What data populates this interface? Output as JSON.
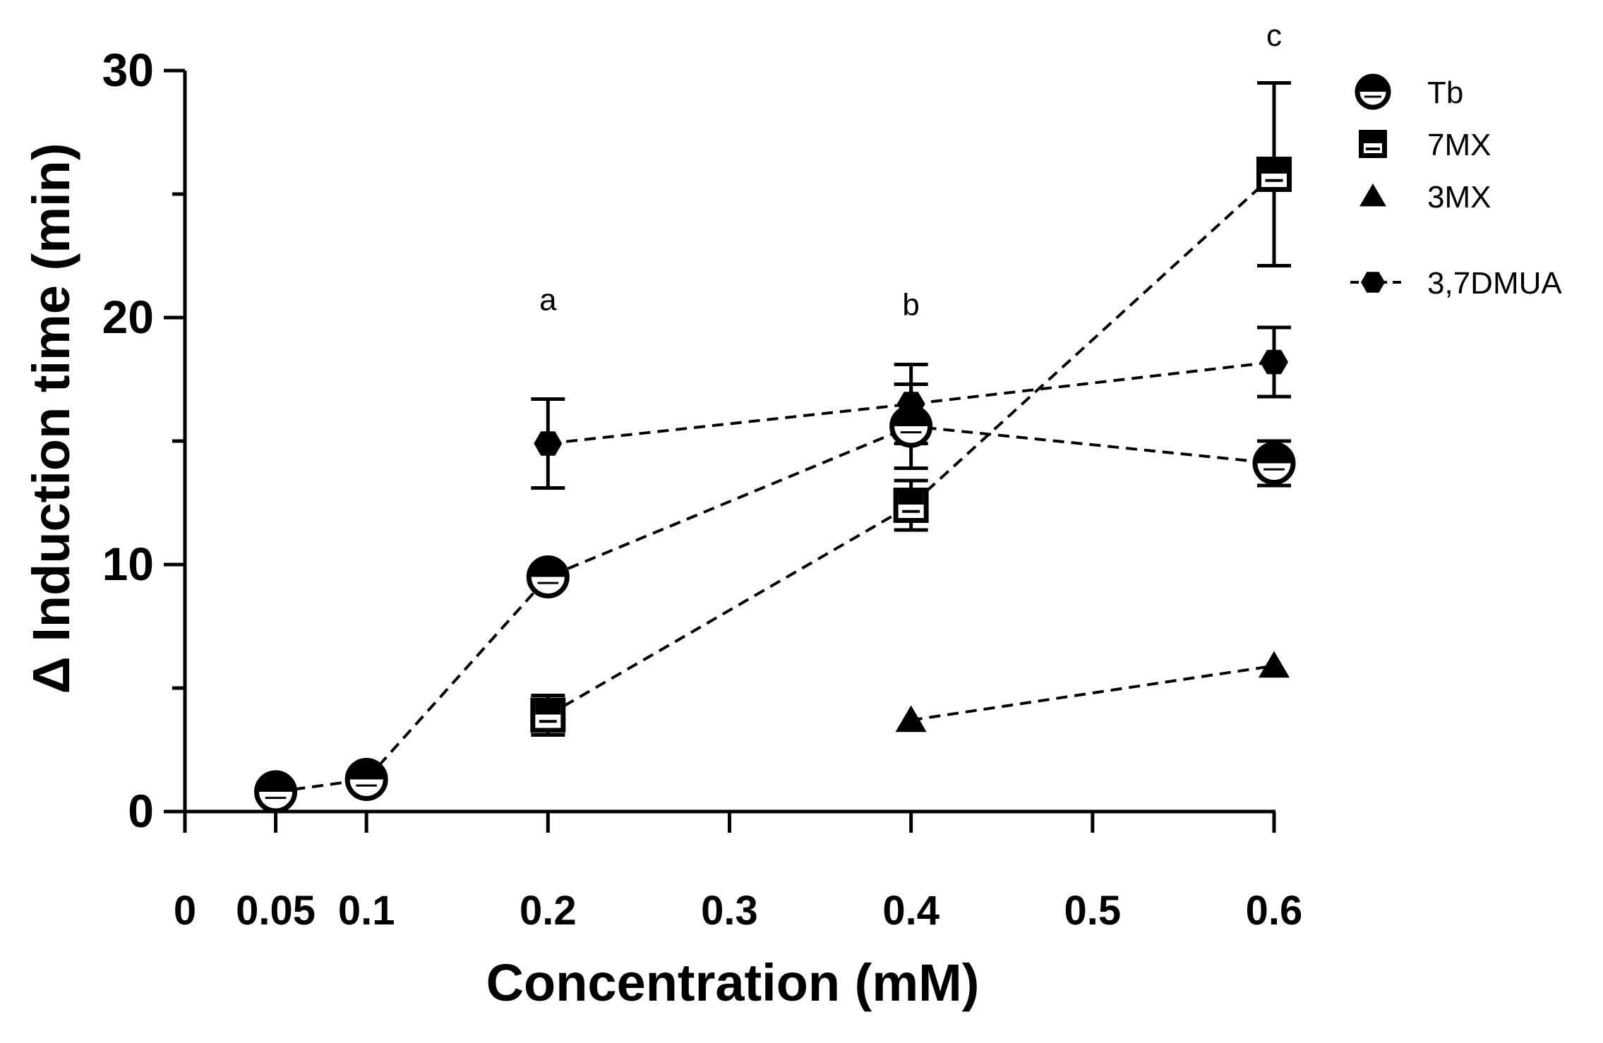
{
  "chart_data": {
    "type": "line",
    "title": "",
    "xlabel": "Concentration (mM)",
    "ylabel": "Δ Induction time (min)",
    "xlim": [
      0,
      0.6
    ],
    "ylim": [
      0,
      30
    ],
    "x_ticks": [
      0,
      0.05,
      0.1,
      0.2,
      0.3,
      0.4,
      0.5,
      0.6
    ],
    "x_tick_labels": [
      "0",
      "0.05",
      "0.1",
      "0.2",
      "0.3",
      "0.4",
      "0.5",
      "0.6"
    ],
    "y_ticks": [
      0,
      10,
      20,
      30
    ],
    "y_tick_labels": [
      "0",
      "10",
      "20",
      "30"
    ],
    "grid": false,
    "legend_position": "top-right",
    "series": [
      {
        "name": "Tb",
        "marker": "half-circle",
        "x": [
          0.05,
          0.1,
          0.2,
          0.4,
          0.6
        ],
        "y": [
          0.8,
          1.3,
          9.5,
          15.6,
          14.1
        ],
        "error": [
          0,
          0,
          0,
          1.7,
          0.9
        ]
      },
      {
        "name": "7MX",
        "marker": "half-square",
        "x": [
          0.2,
          0.4,
          0.6
        ],
        "y": [
          3.9,
          12.4,
          25.8
        ],
        "error": [
          0.8,
          1.0,
          3.7
        ]
      },
      {
        "name": "3MX",
        "marker": "triangle",
        "x": [
          0.4,
          0.6
        ],
        "y": [
          3.7,
          5.9
        ],
        "error": [
          0,
          0
        ]
      },
      {
        "name": "3,7DMUA",
        "marker": "hexagon",
        "x": [
          0.2,
          0.4,
          0.6
        ],
        "y": [
          14.9,
          16.5,
          18.2
        ],
        "error": [
          1.8,
          1.6,
          1.4
        ]
      }
    ],
    "annotations": [
      {
        "text": "a",
        "x": 0.2,
        "y": 20.3
      },
      {
        "text": "b",
        "x": 0.4,
        "y": 20.1
      },
      {
        "text": "c",
        "x": 0.6,
        "y": 31.0
      }
    ]
  }
}
